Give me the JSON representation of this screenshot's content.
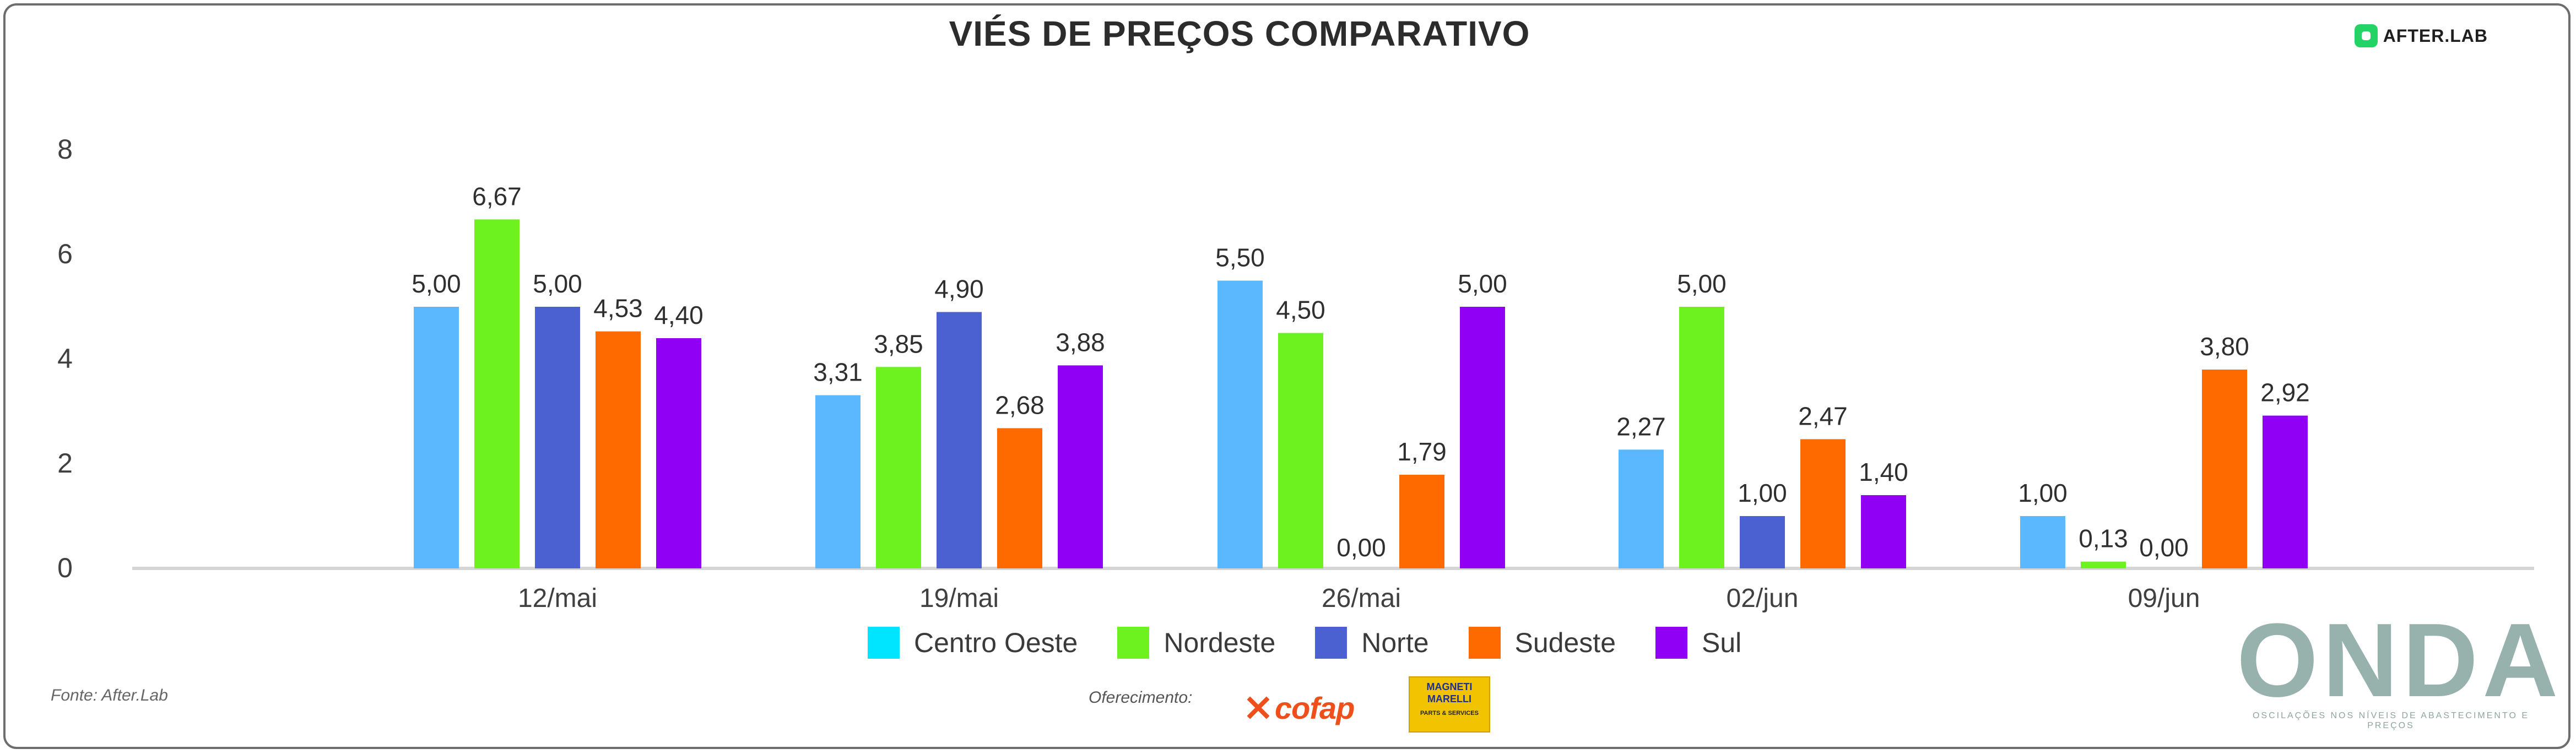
{
  "header": {
    "title": "VIÉS DE PREÇOS COMPARATIVO",
    "brand": "AFTER.LAB"
  },
  "footer": {
    "source": "Fonte: After.Lab",
    "directed": "Oferecimento:",
    "cofap": "cofap",
    "magneti_top": "MAGNETI",
    "magneti_bottom": "MARELLI",
    "magneti_foot": "PARTS & SERVICES",
    "onda": "ONDA",
    "onda_subtitle": "OSCILAÇÕES NOS NÍVEIS DE ABASTECIMENTO E PREÇOS"
  },
  "chart_data": {
    "type": "bar",
    "categories": [
      "12/mai",
      "19/mai",
      "26/mai",
      "02/jun",
      "09/jun"
    ],
    "ylim": [
      0,
      8
    ],
    "yticks": [
      0,
      2,
      4,
      6,
      8
    ],
    "grid": false,
    "legend_position": "bottom-center",
    "series": [
      {
        "name": "Centro Oeste",
        "color": "#5bb8ff",
        "legend_color": "#00e5ff",
        "values": [
          5.0,
          3.31,
          5.5,
          2.27,
          1.0
        ]
      },
      {
        "name": "Nordeste",
        "color": "#6df21f",
        "legend_color": "#6df21f",
        "values": [
          6.67,
          3.85,
          4.5,
          5.0,
          0.13
        ]
      },
      {
        "name": "Norte",
        "color": "#4b61d1",
        "legend_color": "#4b61d1",
        "values": [
          5.0,
          4.9,
          0.0,
          1.0,
          0.0
        ]
      },
      {
        "name": "Sudeste",
        "color": "#ff6a00",
        "legend_color": "#ff6a00",
        "values": [
          4.53,
          2.68,
          1.79,
          2.47,
          3.8
        ]
      },
      {
        "name": "Sul",
        "color": "#8f00f5",
        "legend_color": "#8f00f5",
        "values": [
          4.4,
          3.88,
          5.0,
          1.4,
          2.92
        ]
      }
    ],
    "data_labels": [
      [
        "5,00",
        "3,31",
        "5,50",
        "2,27",
        "1,00"
      ],
      [
        "6,67",
        "3,85",
        "4,50",
        "5,00",
        "0,13"
      ],
      [
        "5,00",
        "4,90",
        "0,00",
        "1,00",
        "0,00"
      ],
      [
        "4,53",
        "2,68",
        "1,79",
        "2,47",
        "3,80"
      ],
      [
        "4,40",
        "3,88",
        "5,00",
        "1,40",
        "2,92"
      ]
    ]
  }
}
